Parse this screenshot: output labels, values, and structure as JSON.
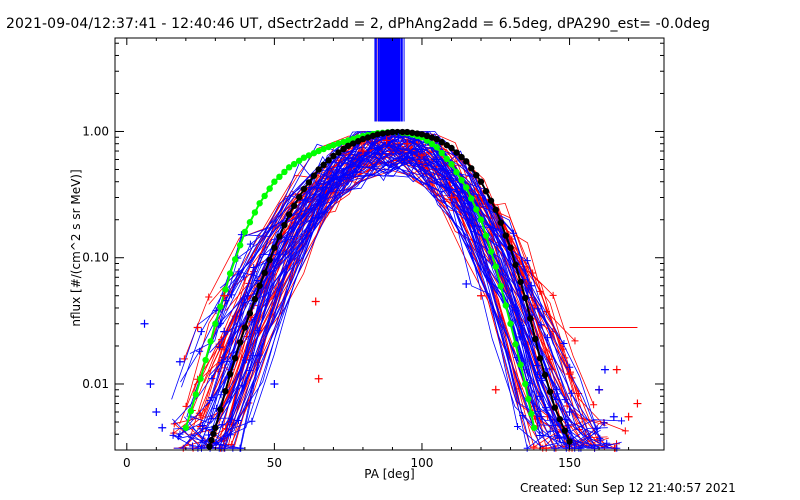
{
  "title": "2021-09-04/12:37:41 - 12:40:46 UT, dSectr2add = 2, dPhAng2add = 6.5deg, dPA290_est= -0.0deg",
  "created": "Created: Sun Sep 12 21:40:57 2021",
  "colors": {
    "red": "#ff0000",
    "blue": "#0000ff",
    "green": "#00ff00",
    "black": "#000000"
  },
  "chart_data": {
    "type": "line",
    "xlabel": "PA [deg]",
    "ylabel": "nflux [#/(cm^2 s sr MeV)]",
    "xlim": [
      -4,
      182
    ],
    "ylim": [
      0.003,
      5.5
    ],
    "yscale": "log",
    "x_ticks": [
      0,
      50,
      100,
      150
    ],
    "x_tick_labels": [
      "0",
      "50",
      "100",
      "150"
    ],
    "y_ticks": [
      0.01,
      0.1,
      1.0
    ],
    "y_tick_labels": [
      "0.01",
      "0.10",
      "1.00"
    ],
    "grid": false,
    "series": [
      {
        "color": "green",
        "marker": "filled-circle",
        "points": [
          [
            20,
            0.0045
          ],
          [
            25,
            0.011
          ],
          [
            30,
            0.03
          ],
          [
            35,
            0.075
          ],
          [
            40,
            0.16
          ],
          [
            45,
            0.27
          ],
          [
            50,
            0.4
          ],
          [
            55,
            0.52
          ],
          [
            60,
            0.62
          ],
          [
            65,
            0.7
          ],
          [
            70,
            0.78
          ],
          [
            75,
            0.85
          ],
          [
            80,
            0.92
          ],
          [
            85,
            0.97
          ],
          [
            90,
            0.99
          ],
          [
            95,
            0.97
          ],
          [
            100,
            0.9
          ],
          [
            105,
            0.75
          ],
          [
            110,
            0.55
          ],
          [
            115,
            0.36
          ],
          [
            120,
            0.2
          ],
          [
            125,
            0.085
          ],
          [
            130,
            0.03
          ],
          [
            135,
            0.01
          ],
          [
            138,
            0.0045
          ]
        ]
      },
      {
        "color": "black",
        "marker": "filled-circle",
        "points": [
          [
            28,
            0.0032
          ],
          [
            30,
            0.0045
          ],
          [
            35,
            0.012
          ],
          [
            40,
            0.028
          ],
          [
            45,
            0.06
          ],
          [
            50,
            0.12
          ],
          [
            55,
            0.22
          ],
          [
            60,
            0.35
          ],
          [
            65,
            0.5
          ],
          [
            70,
            0.64
          ],
          [
            75,
            0.77
          ],
          [
            80,
            0.87
          ],
          [
            85,
            0.95
          ],
          [
            90,
            0.99
          ],
          [
            95,
            0.99
          ],
          [
            100,
            0.95
          ],
          [
            105,
            0.87
          ],
          [
            110,
            0.74
          ],
          [
            115,
            0.58
          ],
          [
            120,
            0.4
          ],
          [
            125,
            0.24
          ],
          [
            130,
            0.12
          ],
          [
            135,
            0.048
          ],
          [
            140,
            0.016
          ],
          [
            145,
            0.0065
          ],
          [
            150,
            0.0035
          ]
        ]
      },
      {
        "color": "red",
        "marker": "plus",
        "points": [
          [
            24,
            0.028
          ],
          [
            33,
            0.05
          ],
          [
            64,
            0.045
          ],
          [
            65,
            0.011
          ],
          [
            80,
            0.7
          ],
          [
            88,
            0.85
          ],
          [
            95,
            0.8
          ],
          [
            100,
            0.65
          ],
          [
            110,
            0.3
          ],
          [
            120,
            0.05
          ],
          [
            125,
            0.009
          ],
          [
            150,
            0.012
          ],
          [
            160,
            0.009
          ],
          [
            166,
            0.013
          ],
          [
            170,
            0.0055
          ],
          [
            173,
            0.007
          ]
        ]
      },
      {
        "color": "blue",
        "marker": "plus",
        "points": [
          [
            6,
            0.03
          ],
          [
            8,
            0.01
          ],
          [
            10,
            0.006
          ],
          [
            12,
            0.0045
          ],
          [
            18,
            0.015
          ],
          [
            33,
            0.026
          ],
          [
            50,
            0.01
          ],
          [
            70,
            0.45
          ],
          [
            85,
            0.75
          ],
          [
            92,
            0.9
          ],
          [
            100,
            0.72
          ],
          [
            105,
            0.6
          ],
          [
            115,
            0.062
          ],
          [
            137,
            0.06
          ],
          [
            140,
            0.008
          ],
          [
            150,
            0.006
          ],
          [
            160,
            0.009
          ],
          [
            162,
            0.013
          ],
          [
            165,
            0.0055
          ]
        ]
      }
    ]
  }
}
